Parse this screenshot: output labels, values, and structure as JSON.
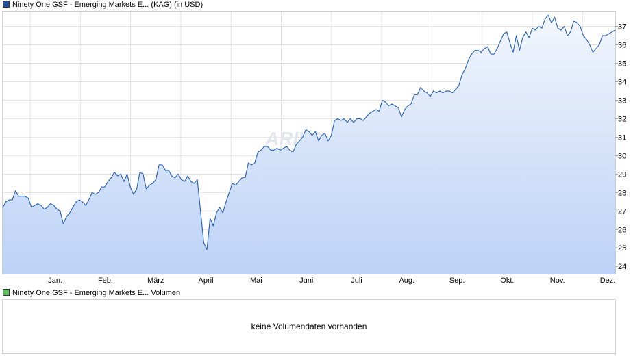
{
  "legend": {
    "price_label": "Ninety One GSF - Emerging Markets E... (KAG) (in USD)",
    "volume_label": "Ninety One GSF - Emerging Markets E... Volumen",
    "price_color": "#1f4e9c",
    "volume_color": "#5cbf5c"
  },
  "watermark": "ARIVA.DE",
  "volume": {
    "message": "keine Volumendaten vorhanden"
  },
  "chart_data": {
    "type": "area",
    "x_labels": [
      "Jan.",
      "Feb.",
      "März",
      "April",
      "Mai",
      "Juni",
      "Juli",
      "Aug.",
      "Sep.",
      "Okt.",
      "Nov.",
      "Dez."
    ],
    "y_ticks": [
      24,
      25,
      26,
      27,
      28,
      29,
      30,
      31,
      32,
      33,
      34,
      35,
      36,
      37
    ],
    "ylim": [
      23.6,
      37.8
    ],
    "grid": true,
    "line_color": "#1f5bb4",
    "fill_top_color": "#f2f6fd",
    "fill_bottom_color": "#bcd2f6",
    "series": [
      {
        "values": [
          27.2,
          27.5,
          27.6,
          27.6,
          28.1,
          27.8,
          27.8,
          27.8,
          27.7,
          27.2,
          27.3,
          27.4,
          27.3,
          27.1,
          27.2,
          27.4,
          27.3,
          27.1,
          27.0,
          26.3,
          26.7,
          26.9,
          27.2,
          27.5,
          27.6,
          27.5,
          27.3,
          27.6,
          28.0,
          27.9,
          28.0,
          28.3,
          28.3,
          28.6,
          28.8,
          29.1,
          28.9,
          29.0,
          28.6,
          29.0,
          28.3,
          27.9,
          28.2,
          29.1,
          29.0,
          28.2,
          28.4,
          28.5,
          28.7,
          29.5,
          29.5,
          29.2,
          29.2,
          28.9,
          28.8,
          29.0,
          28.7,
          28.6,
          28.9,
          28.6,
          28.5,
          28.7,
          27.0,
          25.3,
          24.9,
          26.6,
          26.2,
          26.9,
          27.2,
          26.9,
          27.5,
          28.0,
          28.5,
          28.4,
          28.6,
          28.8,
          28.8,
          29.6,
          29.5,
          29.6,
          30.2,
          30.3,
          30.5,
          30.5,
          30.3,
          30.3,
          30.4,
          30.3,
          30.4,
          30.5,
          30.3,
          30.2,
          30.6,
          30.8,
          31.0,
          31.4,
          31.3,
          31.1,
          31.3,
          30.8,
          31.1,
          31.2,
          30.8,
          31.1,
          31.9,
          32.0,
          31.9,
          32.0,
          31.8,
          32.0,
          31.8,
          32.0,
          32.0,
          31.9,
          32.1,
          32.3,
          32.4,
          32.5,
          32.4,
          33.0,
          32.9,
          32.7,
          32.8,
          32.7,
          32.6,
          32.1,
          32.5,
          32.7,
          32.8,
          33.3,
          33.3,
          33.7,
          33.5,
          33.4,
          33.2,
          33.5,
          33.4,
          33.5,
          33.4,
          33.5,
          33.5,
          33.4,
          33.6,
          33.8,
          34.4,
          34.7,
          35.2,
          35.5,
          35.7,
          35.7,
          35.6,
          35.8,
          35.9,
          35.5,
          35.5,
          35.8,
          36.2,
          36.6,
          36.7,
          36.1,
          35.6,
          36.5,
          35.7,
          36.4,
          36.7,
          36.4,
          36.9,
          36.8,
          37.0,
          36.9,
          37.4,
          37.6,
          37.2,
          37.5,
          36.9,
          36.8,
          37.0,
          36.5,
          36.7,
          37.3,
          37.2,
          37.0,
          36.5,
          36.3,
          36.0,
          35.6,
          35.8,
          36.0,
          36.5,
          36.5,
          36.6,
          36.7,
          36.8
        ]
      }
    ]
  }
}
